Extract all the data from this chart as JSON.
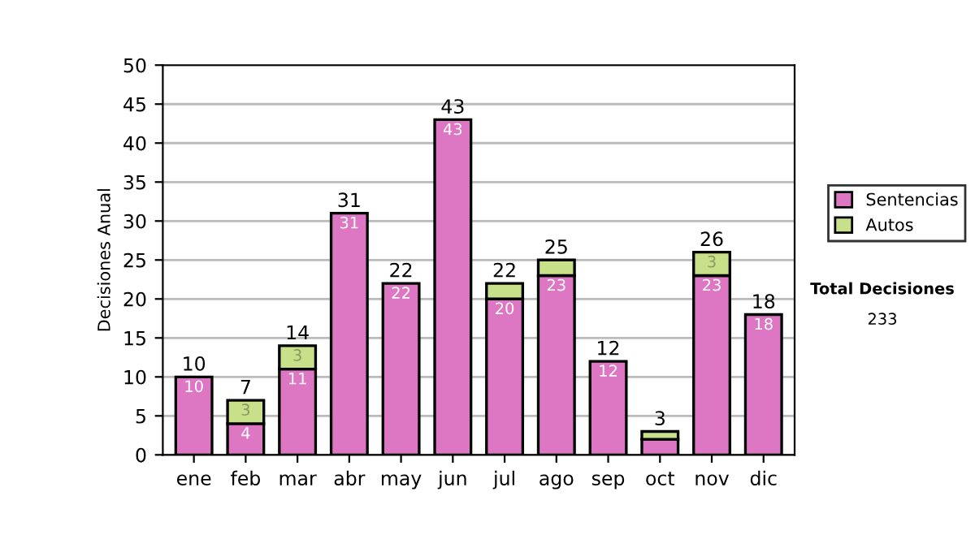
{
  "chart_data": {
    "type": "bar",
    "stacked": true,
    "ylabel": "Decisiones Anual",
    "categories": [
      "ene",
      "feb",
      "mar",
      "abr",
      "may",
      "jun",
      "jul",
      "ago",
      "sep",
      "oct",
      "nov",
      "dic"
    ],
    "series": [
      {
        "name": "Sentencias",
        "color": "#dd77c4",
        "values": [
          10,
          4,
          11,
          31,
          22,
          43,
          20,
          23,
          12,
          2,
          23,
          18
        ],
        "value_labels": [
          "10",
          "4",
          "11",
          "31",
          "22",
          "43",
          "20",
          "23",
          "12",
          null,
          "23",
          "18"
        ]
      },
      {
        "name": "Autos",
        "color": "#c8e08a",
        "values": [
          null,
          3,
          3,
          null,
          null,
          null,
          2,
          2,
          null,
          1,
          3,
          null
        ],
        "value_labels": [
          null,
          "3",
          "3",
          null,
          null,
          null,
          null,
          null,
          null,
          null,
          "3",
          null
        ]
      }
    ],
    "totals": [
      "10",
      "7",
      "14",
      "31",
      "22",
      "43",
      "22",
      "25",
      "12",
      "3",
      "26",
      "18"
    ],
    "ylim": [
      0,
      50
    ],
    "yticks": [
      0,
      5,
      10,
      15,
      20,
      25,
      30,
      35,
      40,
      45,
      50
    ],
    "grid": "y",
    "legend": "right",
    "annotations": [
      "Total Decisiones",
      "233"
    ]
  }
}
